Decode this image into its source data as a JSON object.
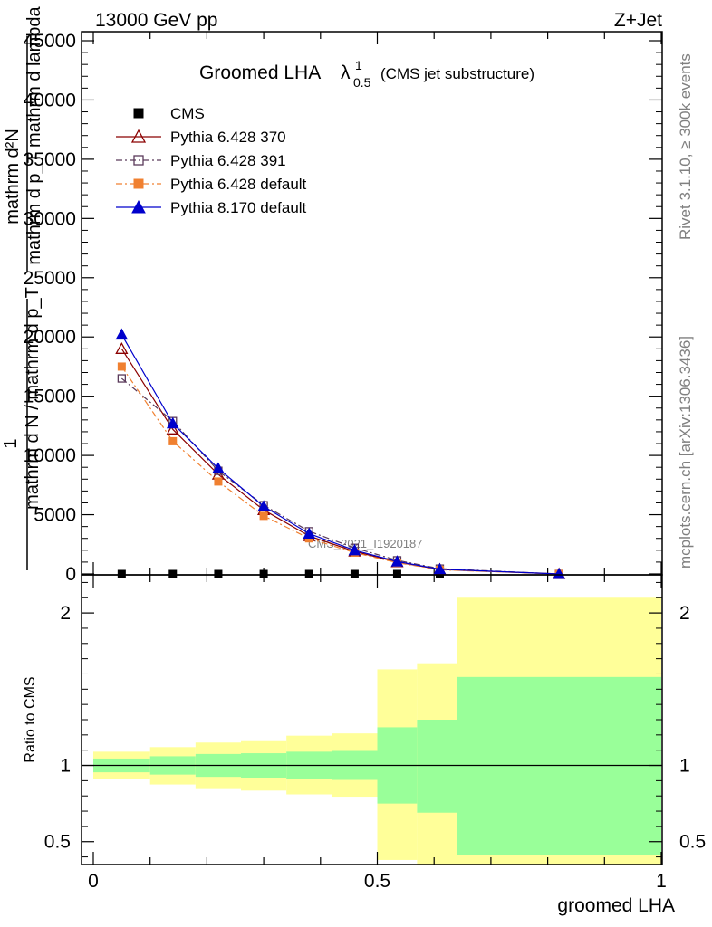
{
  "header": {
    "left": "13000 GeV pp",
    "right": "Z+Jet"
  },
  "side_labels": {
    "rivet": "Rivet 3.1.10, ≥ 300k events",
    "mcplots": "mcplots.cern.ch [arXiv:1306.3436]"
  },
  "chart_data": [
    {
      "type": "line",
      "title_main": "Groomed LHA",
      "title_symbol": "λ",
      "title_sup": "1",
      "title_sub": "0.5",
      "title_note": "(CMS jet substructure)",
      "watermark": "CMS_2021_I1920187",
      "ylabel_num": "1",
      "ylabel_den": "mathrm d N / mathrm d p_T",
      "ylabel_num2": "mathrm d²N",
      "ylabel_den2": "mathrm d p_T mathrm d lambda",
      "ylim": [
        0,
        45000
      ],
      "xlim": [
        0,
        1
      ],
      "y_ticks": [
        {
          "v": 0,
          "label": "0"
        },
        {
          "v": 5000,
          "label": "5000"
        },
        {
          "v": 10000,
          "label": "10000"
        },
        {
          "v": 15000,
          "label": "15000"
        },
        {
          "v": 20000,
          "label": "20000"
        },
        {
          "v": 25000,
          "label": "25000"
        },
        {
          "v": 30000,
          "label": "30000"
        },
        {
          "v": 35000,
          "label": "35000"
        },
        {
          "v": 40000,
          "label": "40000"
        },
        {
          "v": 45000,
          "label": "45000"
        }
      ],
      "series": [
        {
          "name": "CMS",
          "color": "#000000",
          "marker": "square-filled",
          "line": "none",
          "points": [
            [
              0.05,
              0
            ],
            [
              0.14,
              0
            ],
            [
              0.22,
              0
            ],
            [
              0.3,
              0
            ],
            [
              0.38,
              0
            ],
            [
              0.46,
              0
            ],
            [
              0.535,
              0
            ],
            [
              0.61,
              0
            ],
            [
              0.82,
              0
            ]
          ]
        },
        {
          "name": "Pythia 6.428 370",
          "color": "#8b0000",
          "marker": "triangle-open",
          "line": "solid",
          "points": [
            [
              0.05,
              19000
            ],
            [
              0.14,
              12200
            ],
            [
              0.22,
              8400
            ],
            [
              0.3,
              5400
            ],
            [
              0.38,
              3200
            ],
            [
              0.46,
              1900
            ],
            [
              0.535,
              1000
            ],
            [
              0.61,
              380
            ],
            [
              0.82,
              0
            ]
          ]
        },
        {
          "name": "Pythia 6.428 391",
          "color": "#5a3a5a",
          "marker": "square-open",
          "line": "dashdot",
          "points": [
            [
              0.05,
              16500
            ],
            [
              0.14,
              12900
            ],
            [
              0.22,
              8700
            ],
            [
              0.3,
              5800
            ],
            [
              0.38,
              3600
            ],
            [
              0.46,
              2200
            ],
            [
              0.535,
              1150
            ],
            [
              0.61,
              450
            ],
            [
              0.82,
              0
            ]
          ]
        },
        {
          "name": "Pythia 6.428 default",
          "color": "#f08030",
          "marker": "square-filled",
          "line": "dashdot",
          "points": [
            [
              0.05,
              17500
            ],
            [
              0.14,
              11200
            ],
            [
              0.22,
              7800
            ],
            [
              0.3,
              4900
            ],
            [
              0.38,
              3000
            ],
            [
              0.46,
              1800
            ],
            [
              0.535,
              950
            ],
            [
              0.61,
              350
            ],
            [
              0.82,
              0
            ]
          ]
        },
        {
          "name": "Pythia 8.170 default",
          "color": "#0000cc",
          "marker": "triangle-filled",
          "line": "solid",
          "points": [
            [
              0.05,
              20200
            ],
            [
              0.14,
              12700
            ],
            [
              0.22,
              8900
            ],
            [
              0.3,
              5700
            ],
            [
              0.38,
              3400
            ],
            [
              0.46,
              2000
            ],
            [
              0.535,
              1050
            ],
            [
              0.61,
              400
            ],
            [
              0.82,
              0
            ]
          ]
        }
      ]
    },
    {
      "type": "area",
      "ylabel": "Ratio to CMS",
      "xlabel": "groomed LHA",
      "xlim": [
        0,
        1
      ],
      "ylim": [
        0.35,
        2.25
      ],
      "x_ticks": [
        {
          "v": 0,
          "label": "0"
        },
        {
          "v": 0.5,
          "label": "0.5"
        },
        {
          "v": 1,
          "label": "1"
        }
      ],
      "y_ticks": [
        {
          "v": 0.5,
          "label": "0.5"
        },
        {
          "v": 1,
          "label": "1"
        },
        {
          "v": 2,
          "label": "2"
        }
      ],
      "reference_line": 1,
      "bands": [
        {
          "x0": 0.0,
          "x1": 0.1,
          "inner_lo": 0.955,
          "inner_hi": 1.045,
          "outer_lo": 0.91,
          "outer_hi": 1.09
        },
        {
          "x0": 0.1,
          "x1": 0.18,
          "inner_lo": 0.94,
          "inner_hi": 1.06,
          "outer_lo": 0.875,
          "outer_hi": 1.12
        },
        {
          "x0": 0.18,
          "x1": 0.26,
          "inner_lo": 0.925,
          "inner_hi": 1.075,
          "outer_lo": 0.845,
          "outer_hi": 1.15
        },
        {
          "x0": 0.26,
          "x1": 0.34,
          "inner_lo": 0.92,
          "inner_hi": 1.08,
          "outer_lo": 0.835,
          "outer_hi": 1.165
        },
        {
          "x0": 0.34,
          "x1": 0.42,
          "inner_lo": 0.91,
          "inner_hi": 1.09,
          "outer_lo": 0.81,
          "outer_hi": 1.195
        },
        {
          "x0": 0.42,
          "x1": 0.5,
          "inner_lo": 0.905,
          "inner_hi": 1.095,
          "outer_lo": 0.795,
          "outer_hi": 1.21
        },
        {
          "x0": 0.5,
          "x1": 0.57,
          "inner_lo": 0.75,
          "inner_hi": 1.25,
          "outer_lo": 0.38,
          "outer_hi": 1.63
        },
        {
          "x0": 0.57,
          "x1": 0.64,
          "inner_lo": 0.69,
          "inner_hi": 1.3,
          "outer_lo": 0.35,
          "outer_hi": 1.67
        },
        {
          "x0": 0.64,
          "x1": 1.0,
          "inner_lo": 0.41,
          "inner_hi": 1.58,
          "outer_lo": 0.35,
          "outer_hi": 2.1
        }
      ],
      "band_colors": {
        "inner": "#99ff99",
        "outer": "#ffff99"
      }
    }
  ]
}
